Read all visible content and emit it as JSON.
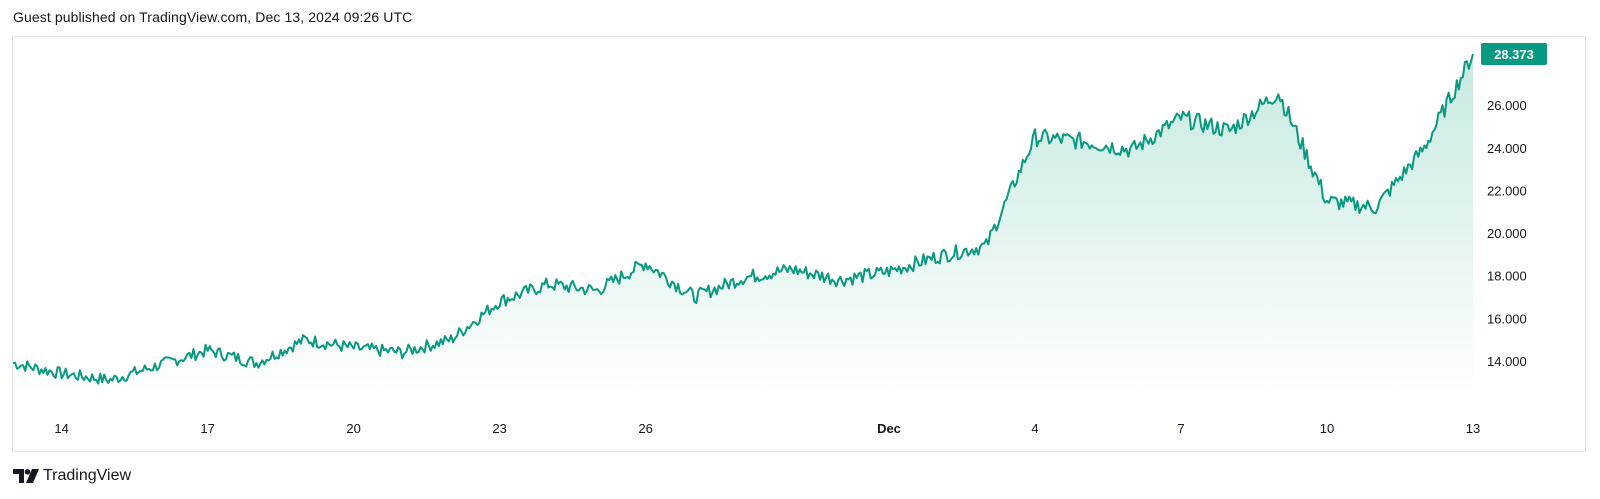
{
  "header": {
    "text": "Guest published on TradingView.com, Dec 13, 2024 09:26 UTC"
  },
  "brand": {
    "logo_icon": "tradingview-logo-icon",
    "name": "TradingView"
  },
  "colors": {
    "line": "#089981",
    "area_top": "#c6e9e0",
    "area_bottom": "#ffffff",
    "price_label_bg": "#089981"
  },
  "chart_data": {
    "type": "area",
    "title": "",
    "xlabel": "",
    "ylabel": "",
    "x_tick_labels": [
      "14",
      "17",
      "20",
      "23",
      "26",
      "Dec",
      "4",
      "7",
      "10",
      "13"
    ],
    "y_tick_labels": [
      "14.000",
      "16.000",
      "18.000",
      "20.000",
      "22.000",
      "24.000",
      "26.000"
    ],
    "ylim": [
      12.4,
      29.2
    ],
    "last_price_label": "28.373",
    "grid": false,
    "series": [
      {
        "x": [
          "Nov 13",
          "Nov 14",
          "Nov 15",
          "Nov 16",
          "Nov 17",
          "Nov 18",
          "Nov 19",
          "Nov 20",
          "Nov 21",
          "Nov 22",
          "Nov 23",
          "Nov 24",
          "Nov 25",
          "Nov 26",
          "Nov 27",
          "Nov 28",
          "Nov 29",
          "Nov 30",
          "Dec 1",
          "Dec 2",
          "Dec 3",
          "Dec 4",
          "Dec 5",
          "Dec 6",
          "Dec 7",
          "Dec 8",
          "Dec 9",
          "Dec 10",
          "Dec 11",
          "Dec 12",
          "Dec 13"
        ],
        "values": [
          13.9,
          13.4,
          13.1,
          13.8,
          14.5,
          13.9,
          15.0,
          14.6,
          14.4,
          15.0,
          16.8,
          17.6,
          17.3,
          18.6,
          17.0,
          17.9,
          18.3,
          17.8,
          18.2,
          18.9,
          19.4,
          24.5,
          24.3,
          23.9,
          25.4,
          24.8,
          26.6,
          21.5,
          21.2,
          24.0,
          28.4
        ]
      }
    ]
  }
}
